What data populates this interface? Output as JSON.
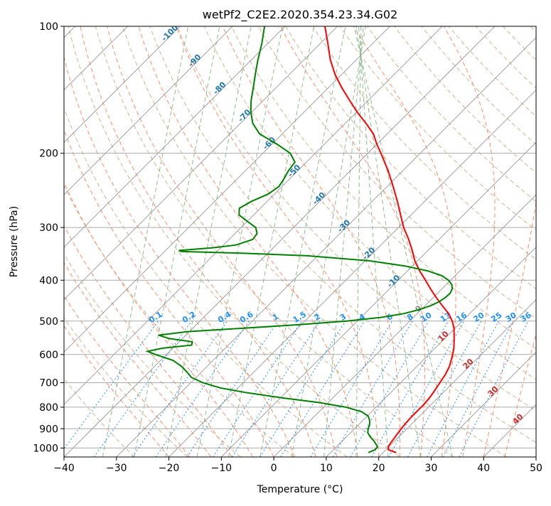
{
  "chart_data": {
    "type": "line",
    "title": "wetPf2_C2E2.2020.354.23.34.G02",
    "xlabel": "Temperature (°C)",
    "ylabel": "Pressure (hPa)",
    "xlim": [
      -40,
      50
    ],
    "ylim": [
      1050,
      100
    ],
    "x_ticks": [
      -40,
      -30,
      -20,
      -10,
      0,
      10,
      20,
      30,
      40,
      50
    ],
    "y_ticks": [
      100,
      200,
      300,
      400,
      500,
      600,
      700,
      800,
      900,
      1000
    ],
    "series": [
      {
        "name": "temperature",
        "color": "#ff0000",
        "points": [
          [
            1025,
            22.5
          ],
          [
            1010,
            20.5
          ],
          [
            990,
            19.8
          ],
          [
            970,
            19.6
          ],
          [
            950,
            19.4
          ],
          [
            930,
            19.2
          ],
          [
            900,
            18.9
          ],
          [
            870,
            18.7
          ],
          [
            840,
            18.6
          ],
          [
            810,
            18.6
          ],
          [
            790,
            18.6
          ],
          [
            760,
            18.4
          ],
          [
            730,
            18.0
          ],
          [
            700,
            17.5
          ],
          [
            670,
            17.0
          ],
          [
            640,
            16.2
          ],
          [
            610,
            15.0
          ],
          [
            580,
            13.6
          ],
          [
            550,
            11.8
          ],
          [
            520,
            9.8
          ],
          [
            500,
            8.1
          ],
          [
            480,
            6.0
          ],
          [
            460,
            3.3
          ],
          [
            440,
            0.6
          ],
          [
            420,
            -2.1
          ],
          [
            400,
            -4.8
          ],
          [
            380,
            -7.7
          ],
          [
            360,
            -10.5
          ],
          [
            340,
            -13.0
          ],
          [
            320,
            -15.8
          ],
          [
            300,
            -19.0
          ],
          [
            280,
            -22.0
          ],
          [
            260,
            -25.2
          ],
          [
            240,
            -28.8
          ],
          [
            220,
            -32.8
          ],
          [
            200,
            -37.5
          ],
          [
            190,
            -40.1
          ],
          [
            180,
            -42.6
          ],
          [
            170,
            -46.0
          ],
          [
            160,
            -49.8
          ],
          [
            150,
            -53.5
          ],
          [
            140,
            -57.4
          ],
          [
            130,
            -61.3
          ],
          [
            120,
            -65.0
          ],
          [
            110,
            -68.5
          ],
          [
            100,
            -72.4
          ]
        ]
      },
      {
        "name": "dewpoint",
        "color": "#008000",
        "points": [
          [
            1025,
            17.2
          ],
          [
            1010,
            17.9
          ],
          [
            995,
            17.9
          ],
          [
            980,
            17.1
          ],
          [
            960,
            15.9
          ],
          [
            940,
            14.5
          ],
          [
            920,
            13.3
          ],
          [
            900,
            12.6
          ],
          [
            880,
            12.1
          ],
          [
            860,
            11.3
          ],
          [
            840,
            10.2
          ],
          [
            820,
            8.1
          ],
          [
            800,
            4.2
          ],
          [
            780,
            -1.8
          ],
          [
            760,
            -9.8
          ],
          [
            740,
            -17.2
          ],
          [
            720,
            -23.4
          ],
          [
            700,
            -27.7
          ],
          [
            680,
            -30.9
          ],
          [
            660,
            -32.8
          ],
          [
            640,
            -34.9
          ],
          [
            620,
            -37.6
          ],
          [
            600,
            -42.1
          ],
          [
            590,
            -44.2
          ],
          [
            580,
            -42.0
          ],
          [
            570,
            -37.0
          ],
          [
            560,
            -37.5
          ],
          [
            550,
            -42.5
          ],
          [
            540,
            -45.2
          ],
          [
            530,
            -40.5
          ],
          [
            520,
            -30.5
          ],
          [
            510,
            -20.5
          ],
          [
            500,
            -12.0
          ],
          [
            490,
            -6.2
          ],
          [
            480,
            -2.6
          ],
          [
            470,
            -0.4
          ],
          [
            460,
            1.0
          ],
          [
            450,
            1.9
          ],
          [
            440,
            2.3
          ],
          [
            430,
            2.4
          ],
          [
            420,
            2.0
          ],
          [
            410,
            1.1
          ],
          [
            400,
            -0.4
          ],
          [
            390,
            -2.6
          ],
          [
            380,
            -6.2
          ],
          [
            370,
            -11.5
          ],
          [
            360,
            -19.0
          ],
          [
            350,
            -32.0
          ],
          [
            345,
            -45.0
          ],
          [
            342,
            -56.8
          ],
          [
            340,
            -57.5
          ],
          [
            335,
            -51.5
          ],
          [
            330,
            -47.6
          ],
          [
            320,
            -45.5
          ],
          [
            310,
            -45.8
          ],
          [
            300,
            -47.2
          ],
          [
            290,
            -50.0
          ],
          [
            280,
            -52.8
          ],
          [
            270,
            -54.0
          ],
          [
            260,
            -53.0
          ],
          [
            250,
            -51.2
          ],
          [
            240,
            -50.6
          ],
          [
            230,
            -51.1
          ],
          [
            220,
            -51.8
          ],
          [
            210,
            -52.2
          ],
          [
            200,
            -54.8
          ],
          [
            190,
            -59.2
          ],
          [
            180,
            -64.3
          ],
          [
            170,
            -67.6
          ],
          [
            160,
            -70.1
          ],
          [
            150,
            -72.3
          ],
          [
            140,
            -74.3
          ],
          [
            130,
            -76.5
          ],
          [
            120,
            -78.8
          ],
          [
            110,
            -81.1
          ],
          [
            100,
            -83.9
          ]
        ]
      }
    ],
    "isotherm_labels": [
      "-100",
      "-90",
      "-80",
      "-70",
      "-60",
      "-50",
      "-40",
      "-30",
      "-20",
      "-10",
      "0",
      "10",
      "20",
      "30",
      "40"
    ],
    "mixing_ratio_labels": [
      "0.1",
      "0.2",
      "0.4",
      "0.6",
      "1",
      "1.5",
      "2",
      "3",
      "4",
      "6",
      "8",
      "10",
      "13",
      "16",
      "20",
      "25",
      "30",
      "36"
    ],
    "mixing_ratio_values": [
      0.1,
      0.2,
      0.4,
      0.6,
      1,
      1.5,
      2,
      3,
      4,
      6,
      8,
      10,
      13,
      16,
      20,
      25,
      30,
      36
    ],
    "grid": true,
    "colors": {
      "dry_adiabat": "#d2b48c",
      "moist_adiabat": "#ff8c69",
      "mixing_ratio": "#1e90ff",
      "isotherm": "#8c8c8c",
      "isobar": "#aaaaaa",
      "green_guide": "#8fbc8f",
      "cold_label": "#1f77b4",
      "warm_label": "#d62728"
    }
  }
}
